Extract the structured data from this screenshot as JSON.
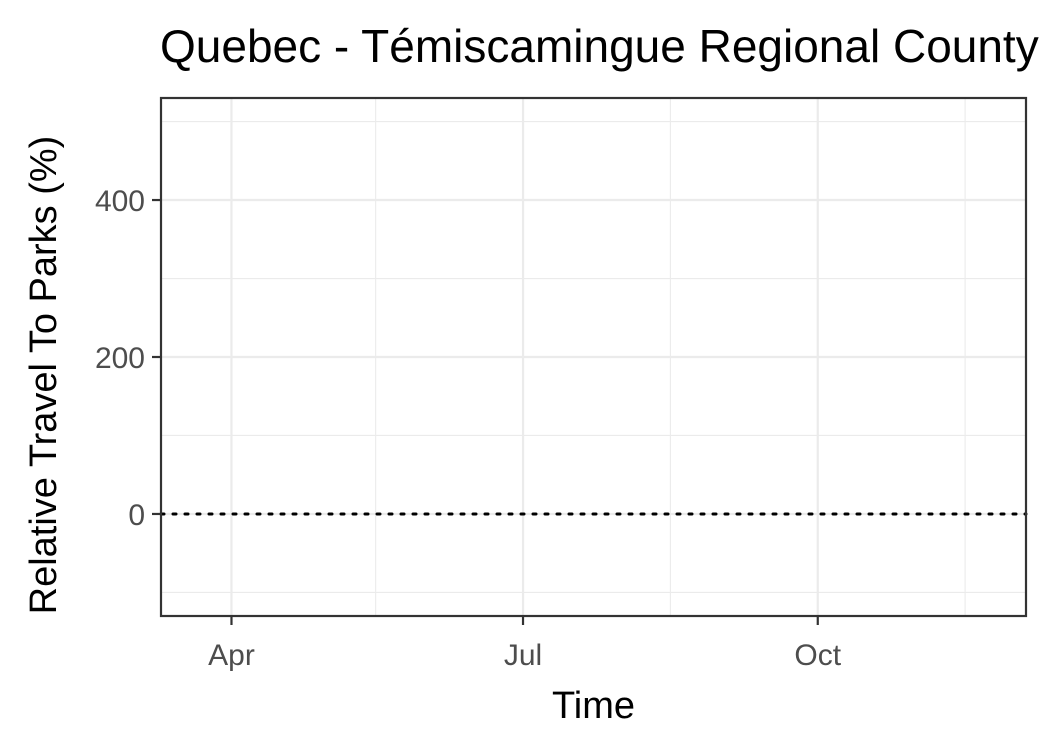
{
  "chart_data": {
    "type": "line",
    "title": "Quebec - Témiscamingue Regional County Municipality",
    "xlabel": "Time",
    "ylabel": "Relative Travel To Parks (%)",
    "x_ticks": [
      {
        "label": "Apr",
        "date": "2020-04-01"
      },
      {
        "label": "Jul",
        "date": "2020-07-01"
      },
      {
        "label": "Oct",
        "date": "2020-10-01"
      }
    ],
    "x_minor_dates": [
      "2020-05-16",
      "2020-08-16",
      "2020-11-16"
    ],
    "xlim": [
      "2020-03-10",
      "2020-12-05"
    ],
    "y_ticks": [
      0,
      200,
      400
    ],
    "y_minor": [
      -100,
      100,
      300,
      500
    ],
    "ylim": [
      -130,
      530
    ],
    "reference_line": {
      "y": 0,
      "style": "dotted"
    },
    "series": [],
    "grid": true,
    "theme": "bw"
  }
}
